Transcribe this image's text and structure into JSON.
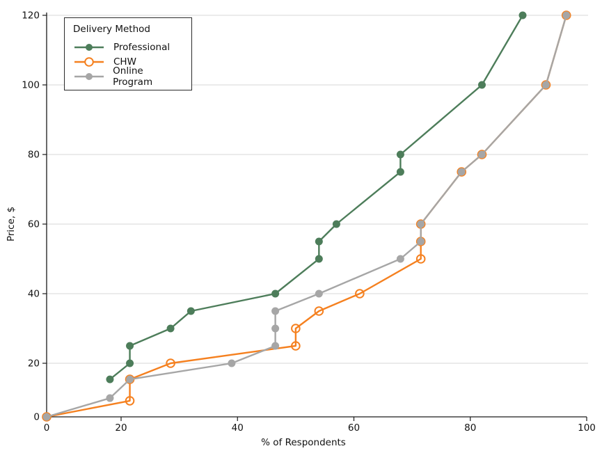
{
  "chart_data": {
    "type": "line",
    "title": "",
    "xlabel": "% of Respondents",
    "ylabel": "Price, $",
    "xlim": [
      0,
      100
    ],
    "ylim": [
      0,
      120
    ],
    "xticks": [
      0,
      20,
      40,
      60,
      80,
      100
    ],
    "yticks": [
      0,
      20,
      40,
      60,
      80,
      100,
      120
    ],
    "grid": "horizontal",
    "gridline_color": "#d7d7d7",
    "spine_color": "#1a1a1a",
    "legend": {
      "title": "Delivery Method",
      "position": "upper-left"
    },
    "series": [
      {
        "name": "Professional",
        "color": "#4d7d5a",
        "marker": "filled-circle",
        "points": [
          [
            17,
            14
          ],
          [
            21.5,
            20
          ],
          [
            21.5,
            25
          ],
          [
            28.5,
            30
          ],
          [
            32,
            35
          ],
          [
            46.5,
            40
          ],
          [
            54,
            50
          ],
          [
            54,
            55
          ],
          [
            57,
            60
          ],
          [
            68,
            75
          ],
          [
            68,
            80
          ],
          [
            82,
            100
          ],
          [
            89,
            120
          ]
        ]
      },
      {
        "name": "CHW",
        "color": "#f5801f",
        "marker": "open-circle",
        "points": [
          [
            0,
            0
          ],
          [
            21.5,
            6
          ],
          [
            21.5,
            14
          ],
          [
            28.5,
            20
          ],
          [
            50,
            25
          ],
          [
            50,
            30
          ],
          [
            54,
            35
          ],
          [
            61,
            40
          ],
          [
            71.5,
            50
          ],
          [
            71.5,
            55
          ],
          [
            71.5,
            60
          ],
          [
            78.5,
            75
          ],
          [
            82,
            80
          ],
          [
            93,
            100
          ],
          [
            96.5,
            120
          ]
        ]
      },
      {
        "name": "Online Program",
        "color": "#a6a6a6",
        "marker": "filled-circle",
        "points": [
          [
            0,
            0
          ],
          [
            17,
            7
          ],
          [
            21.5,
            14
          ],
          [
            39,
            20
          ],
          [
            46.5,
            25
          ],
          [
            46.5,
            30
          ],
          [
            46.5,
            35
          ],
          [
            54,
            40
          ],
          [
            68,
            50
          ],
          [
            71.5,
            55
          ],
          [
            71.5,
            60
          ],
          [
            78.5,
            75
          ],
          [
            82,
            80
          ],
          [
            93,
            100
          ],
          [
            96.5,
            120
          ]
        ]
      }
    ]
  }
}
